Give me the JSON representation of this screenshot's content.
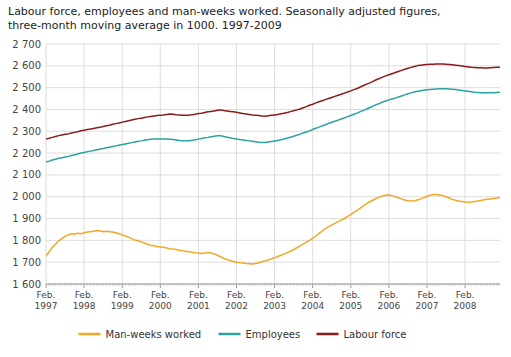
{
  "chart_data": {
    "type": "line",
    "title": "Labour force, employees and man-weeks worked. Seasonally adjusted figures,\nthree-month moving average in 1000. 1997-2009",
    "categories": [
      "Feb.\n1997",
      null,
      null,
      null,
      null,
      null,
      null,
      null,
      null,
      null,
      null,
      null,
      "Feb.\n1998",
      null,
      null,
      null,
      null,
      null,
      null,
      null,
      null,
      null,
      null,
      null,
      "Feb.\n1999",
      null,
      null,
      null,
      null,
      null,
      null,
      null,
      null,
      null,
      null,
      null,
      "Feb.\n2000",
      null,
      null,
      null,
      null,
      null,
      null,
      null,
      null,
      null,
      null,
      null,
      "Feb.\n2001",
      null,
      null,
      null,
      null,
      null,
      null,
      null,
      null,
      null,
      null,
      null,
      "Feb.\n2002",
      null,
      null,
      null,
      null,
      null,
      null,
      null,
      null,
      null,
      null,
      null,
      "Feb.\n2003",
      null,
      null,
      null,
      null,
      null,
      null,
      null,
      null,
      null,
      null,
      null,
      "Feb.\n2004",
      null,
      null,
      null,
      null,
      null,
      null,
      null,
      null,
      null,
      null,
      null,
      "Feb.\n2005",
      null,
      null,
      null,
      null,
      null,
      null,
      null,
      null,
      null,
      null,
      null,
      "Feb.\n2006",
      null,
      null,
      null,
      null,
      null,
      null,
      null,
      null,
      null,
      null,
      null,
      "Feb.\n2007",
      null,
      null,
      null,
      null,
      null,
      null,
      null,
      null,
      null,
      null,
      null,
      "Feb.\n2008",
      null,
      null,
      null,
      null,
      null,
      null,
      null,
      null,
      null,
      null,
      null
    ],
    "series": [
      {
        "name": "Man-weeks worked",
        "color": "#f5a623",
        "values": [
          1728,
          1748,
          1768,
          1782,
          1798,
          1808,
          1818,
          1825,
          1830,
          1828,
          1833,
          1830,
          1835,
          1838,
          1840,
          1842,
          1845,
          1843,
          1840,
          1842,
          1840,
          1838,
          1835,
          1830,
          1825,
          1820,
          1815,
          1808,
          1802,
          1798,
          1793,
          1788,
          1782,
          1778,
          1775,
          1772,
          1770,
          1768,
          1765,
          1762,
          1760,
          1758,
          1755,
          1752,
          1750,
          1748,
          1745,
          1743,
          1742,
          1740,
          1742,
          1745,
          1742,
          1738,
          1732,
          1725,
          1718,
          1712,
          1708,
          1703,
          1700,
          1698,
          1696,
          1694,
          1693,
          1692,
          1694,
          1697,
          1702,
          1706,
          1710,
          1715,
          1720,
          1726,
          1732,
          1738,
          1744,
          1750,
          1758,
          1766,
          1775,
          1783,
          1792,
          1800,
          1810,
          1820,
          1832,
          1843,
          1854,
          1863,
          1870,
          1878,
          1886,
          1893,
          1900,
          1910,
          1918,
          1928,
          1938,
          1948,
          1958,
          1968,
          1977,
          1985,
          1992,
          1998,
          2003,
          2007,
          2008,
          2005,
          2000,
          1995,
          1990,
          1985,
          1982,
          1980,
          1982,
          1985,
          1990,
          1996,
          2002,
          2007,
          2010,
          2010,
          2008,
          2005,
          2000,
          1994,
          1988,
          1984,
          1980,
          1978,
          1976,
          1975,
          1976,
          1978,
          1980,
          1983,
          1986,
          1988,
          1990,
          1992,
          1994,
          1996
        ]
      },
      {
        "name": "Employees",
        "color": "#2aa3a0",
        "values": [
          2160,
          2163,
          2168,
          2172,
          2176,
          2179,
          2182,
          2185,
          2189,
          2192,
          2196,
          2200,
          2203,
          2206,
          2209,
          2212,
          2215,
          2218,
          2221,
          2224,
          2227,
          2230,
          2233,
          2236,
          2239,
          2242,
          2245,
          2248,
          2251,
          2254,
          2256,
          2259,
          2261,
          2263,
          2265,
          2265,
          2265,
          2265,
          2265,
          2264,
          2262,
          2260,
          2258,
          2257,
          2256,
          2257,
          2259,
          2261,
          2264,
          2267,
          2270,
          2272,
          2275,
          2277,
          2279,
          2280,
          2276,
          2273,
          2270,
          2267,
          2265,
          2262,
          2260,
          2258,
          2256,
          2254,
          2252,
          2250,
          2249,
          2249,
          2251,
          2253,
          2255,
          2258,
          2261,
          2265,
          2269,
          2273,
          2277,
          2282,
          2287,
          2292,
          2297,
          2302,
          2308,
          2314,
          2319,
          2325,
          2330,
          2336,
          2341,
          2346,
          2351,
          2356,
          2361,
          2367,
          2372,
          2378,
          2383,
          2390,
          2396,
          2402,
          2409,
          2415,
          2422,
          2427,
          2434,
          2439,
          2444,
          2448,
          2452,
          2457,
          2462,
          2467,
          2472,
          2476,
          2480,
          2483,
          2486,
          2488,
          2490,
          2492,
          2493,
          2494,
          2495,
          2495,
          2495,
          2494,
          2493,
          2491,
          2489,
          2487,
          2485,
          2483,
          2481,
          2479,
          2478,
          2477,
          2476,
          2476,
          2476,
          2477,
          2478,
          2479
        ]
      },
      {
        "name": "Labour force",
        "color": "#8b1a1a",
        "values": [
          2265,
          2268,
          2272,
          2276,
          2280,
          2283,
          2286,
          2288,
          2292,
          2295,
          2298,
          2302,
          2305,
          2308,
          2310,
          2313,
          2316,
          2318,
          2322,
          2325,
          2328,
          2332,
          2335,
          2338,
          2342,
          2345,
          2348,
          2352,
          2355,
          2358,
          2360,
          2363,
          2366,
          2368,
          2370,
          2372,
          2374,
          2375,
          2377,
          2379,
          2378,
          2376,
          2375,
          2373,
          2373,
          2374,
          2376,
          2378,
          2381,
          2383,
          2386,
          2389,
          2391,
          2393,
          2396,
          2398,
          2395,
          2393,
          2391,
          2389,
          2387,
          2384,
          2381,
          2379,
          2377,
          2375,
          2374,
          2372,
          2370,
          2369,
          2371,
          2373,
          2375,
          2377,
          2380,
          2383,
          2386,
          2390,
          2394,
          2398,
          2402,
          2408,
          2413,
          2419,
          2424,
          2430,
          2435,
          2440,
          2445,
          2450,
          2455,
          2460,
          2465,
          2470,
          2475,
          2480,
          2485,
          2491,
          2496,
          2503,
          2510,
          2516,
          2522,
          2529,
          2536,
          2542,
          2548,
          2554,
          2559,
          2564,
          2569,
          2574,
          2579,
          2584,
          2589,
          2593,
          2597,
          2601,
          2603,
          2605,
          2606,
          2607,
          2607,
          2608,
          2608,
          2608,
          2607,
          2606,
          2605,
          2603,
          2601,
          2599,
          2597,
          2595,
          2593,
          2592,
          2591,
          2591,
          2590,
          2590,
          2591,
          2592,
          2593,
          2594
        ]
      }
    ],
    "ylim": [
      1600,
      2700
    ],
    "yticks": [
      {
        "value": 1600,
        "label": "1 600"
      },
      {
        "value": 1700,
        "label": "1 700"
      },
      {
        "value": 1800,
        "label": "1 800"
      },
      {
        "value": 1900,
        "label": "1 900"
      },
      {
        "value": 2000,
        "label": "2 000"
      },
      {
        "value": 2100,
        "label": "2 100"
      },
      {
        "value": 2200,
        "label": "2 200"
      },
      {
        "value": 2300,
        "label": "2 300"
      },
      {
        "value": 2400,
        "label": "2 400"
      },
      {
        "value": 2500,
        "label": "2 500"
      },
      {
        "value": 2600,
        "label": "2 600"
      },
      {
        "value": 2700,
        "label": "2 700"
      }
    ],
    "grid": true,
    "legend": "bottom"
  }
}
